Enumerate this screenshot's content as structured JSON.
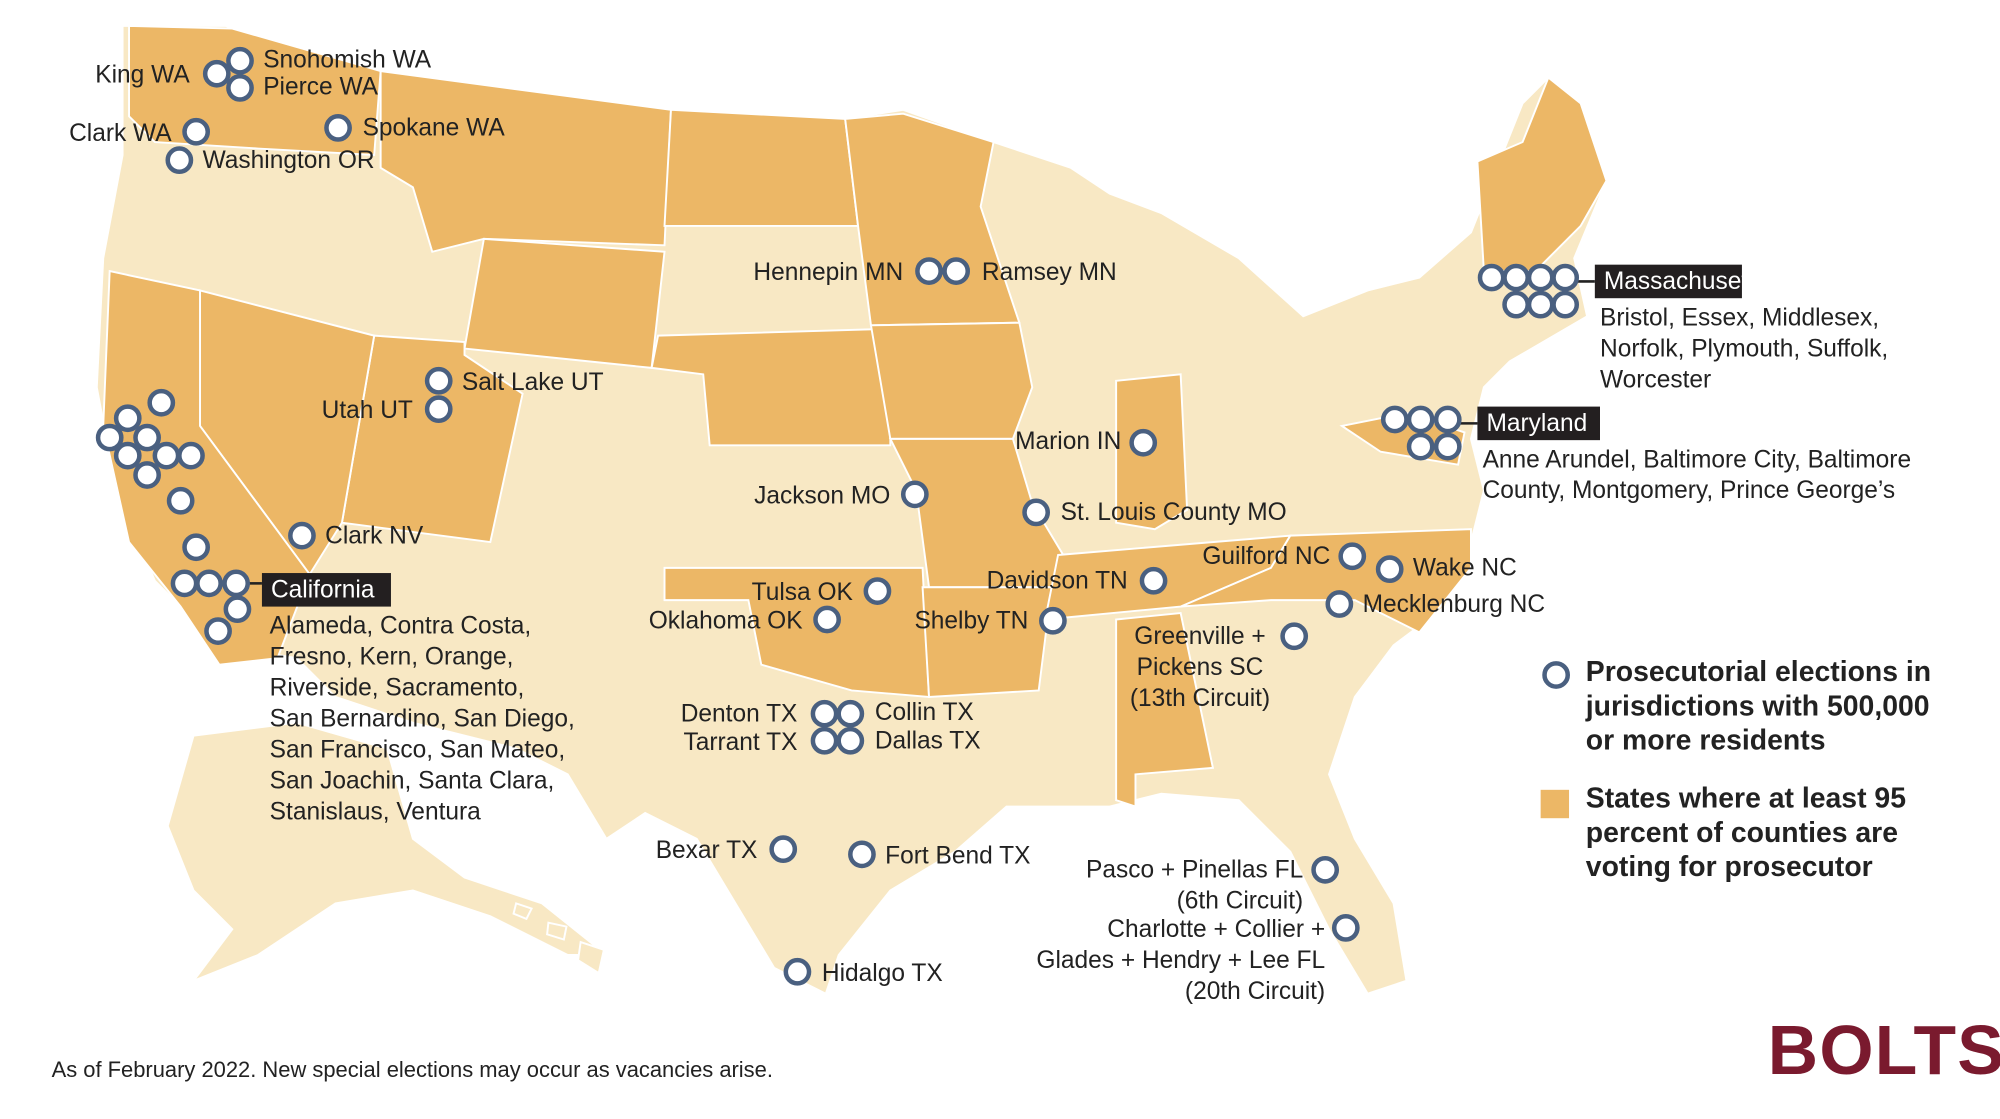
{
  "labels": [
    {
      "lines": [
        "Snohomish WA"
      ]
    },
    {
      "lines": [
        "Pierce WA"
      ]
    },
    {
      "lines": [
        "King WA"
      ]
    },
    {
      "lines": [
        "Clark WA"
      ]
    },
    {
      "lines": [
        "Spokane WA"
      ]
    },
    {
      "lines": [
        "Washington OR"
      ]
    },
    {
      "lines": [
        "Hennepin MN"
      ]
    },
    {
      "lines": [
        "Ramsey MN"
      ]
    },
    {
      "lines": [
        "Salt Lake UT"
      ]
    },
    {
      "lines": [
        "Utah UT"
      ]
    },
    {
      "lines": [
        "Marion IN"
      ]
    },
    {
      "lines": [
        "Jackson MO"
      ]
    },
    {
      "lines": [
        "St. Louis County MO"
      ]
    },
    {
      "lines": [
        "Clark NV"
      ]
    },
    {
      "lines": [
        "Guilford NC"
      ]
    },
    {
      "lines": [
        "Wake NC"
      ]
    },
    {
      "lines": [
        "Davidson TN"
      ]
    },
    {
      "lines": [
        "Mecklenburg NC"
      ]
    },
    {
      "lines": [
        "Tulsa OK"
      ]
    },
    {
      "lines": [
        "Oklahoma OK"
      ]
    },
    {
      "lines": [
        "Shelby TN"
      ]
    },
    {
      "lines": [
        "Greenville +",
        "Pickens SC",
        "(13th Circuit)"
      ]
    },
    {
      "lines": [
        "Denton TX"
      ]
    },
    {
      "lines": [
        "Collin TX"
      ]
    },
    {
      "lines": [
        "Tarrant TX"
      ]
    },
    {
      "lines": [
        "Dallas TX"
      ]
    },
    {
      "lines": [
        "Bexar TX"
      ]
    },
    {
      "lines": [
        "Fort Bend TX"
      ]
    },
    {
      "lines": [
        "Hidalgo TX"
      ]
    },
    {
      "lines": [
        "Pasco + Pinellas FL",
        "(6th Circuit)"
      ]
    },
    {
      "lines": [
        "Charlotte + Collier +",
        "Glades + Hendry + Lee FL",
        "(20th Circuit)"
      ]
    }
  ],
  "groups": [
    {
      "name": "California",
      "lines": [
        "Alameda, Contra Costa,",
        "Fresno, Kern, Orange,",
        "Riverside, Sacramento,",
        "San Bernardino, San Diego,",
        "San Francisco, San Mateo,",
        "San Joachin, Santa Clara,",
        "Stanislaus, Ventura"
      ]
    },
    {
      "name": "Massachusetts",
      "lines": [
        "Bristol, Essex, Middlesex,",
        "Norfolk, Plymouth, Suffolk,",
        "Worcester"
      ]
    },
    {
      "name": "Maryland",
      "lines": [
        "Anne Arundel, Baltimore City, Baltimore",
        "County, Montgomery, Prince George’s"
      ]
    }
  ],
  "legend": {
    "circles": [
      "Prosecutorial elections in",
      "jurisdictions with 500,000",
      "or more residents"
    ],
    "states": [
      "States where at least 95",
      "percent of counties are",
      "voting for prosecutor"
    ]
  },
  "footnote": "As of February 2022. New special elections may occur as vacancies arise.",
  "logo": "BOLTS"
}
